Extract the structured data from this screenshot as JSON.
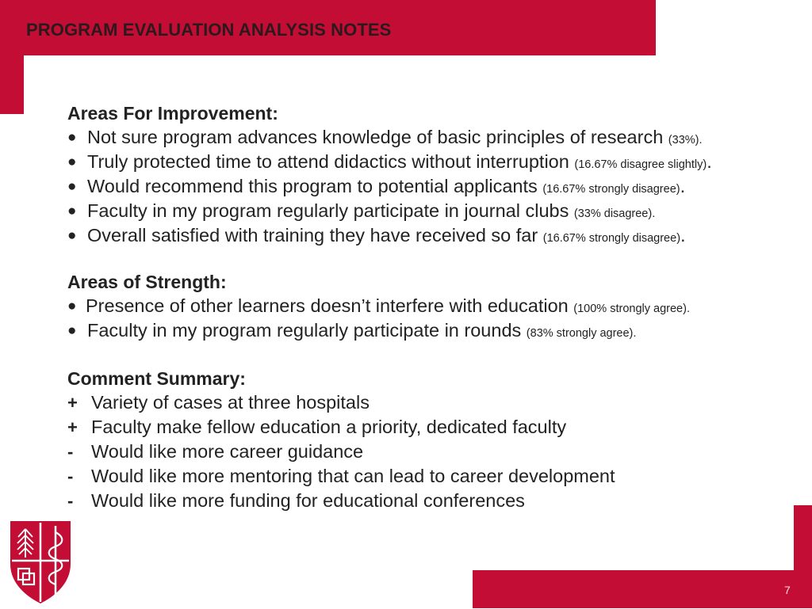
{
  "header": {
    "title": "PROGRAM EVALUATION ANALYSIS NOTES"
  },
  "improvement": {
    "heading": "Areas For Improvement:",
    "items": [
      {
        "text": "Not sure program advances knowledge of basic principles of research",
        "note": "(33%)."
      },
      {
        "text": "Truly protected time to attend didactics without interruption",
        "note": "(16.67% disagree slightly)",
        "end": "."
      },
      {
        "text": "Would recommend this program to potential applicants",
        "note": "(16.67% strongly disagree)",
        "end": "."
      },
      {
        "text": "Faculty in my program regularly participate in journal clubs",
        "note": "(33% disagree)."
      },
      {
        "text": "Overall satisfied with training they have received so far",
        "note": "(16.67% strongly disagree)",
        "end": "."
      }
    ]
  },
  "strength": {
    "heading": "Areas of Strength:",
    "items": [
      {
        "text": "Presence of other learners doesn’t interfere with education",
        "note": "(100% strongly agree)."
      },
      {
        "text": "Faculty in my program regularly participate in rounds",
        "note": "(83% strongly agree)."
      }
    ]
  },
  "comments": {
    "heading": "Comment Summary:",
    "items": [
      {
        "mark": "+",
        "text": "Variety of cases at three hospitals"
      },
      {
        "mark": "+",
        "text": "Faculty make fellow education a priority, dedicated faculty"
      },
      {
        "mark": "-",
        "text": "Would like more career guidance"
      },
      {
        "mark": "-",
        "text": "Would like more mentoring that can lead to career development"
      },
      {
        "mark": "-",
        "text": "Would like more funding for educational conferences"
      }
    ]
  },
  "footer": {
    "page_number": "7"
  },
  "colors": {
    "brand_red": "#c30d34"
  }
}
